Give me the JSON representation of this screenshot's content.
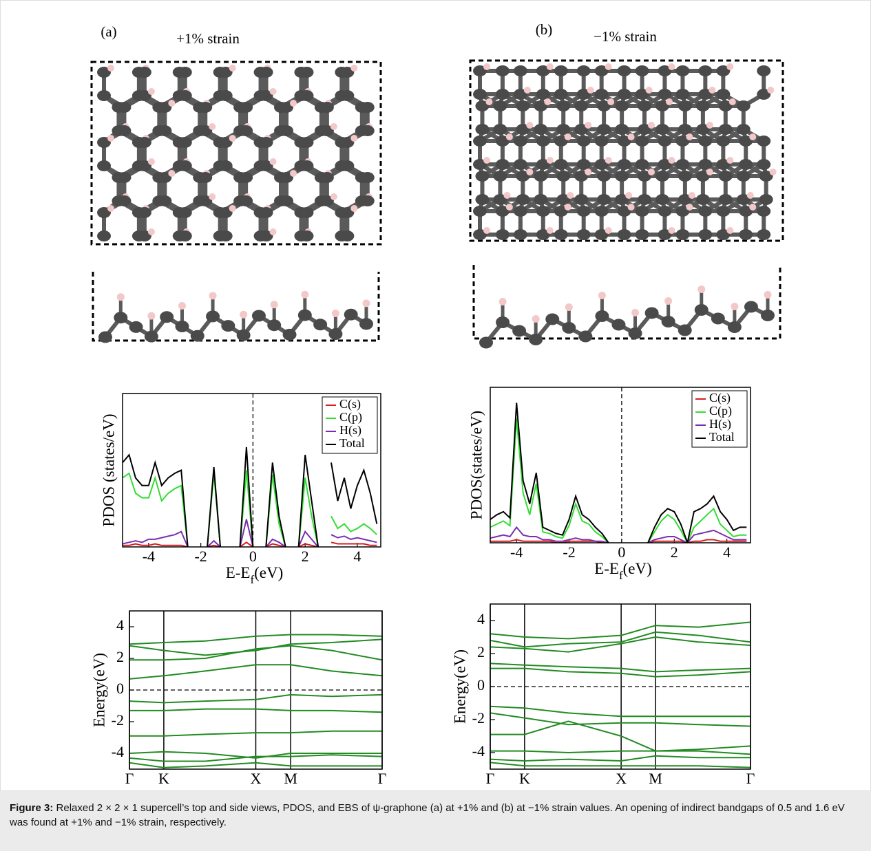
{
  "panels": [
    {
      "label": "(a)",
      "title": "+1% strain"
    },
    {
      "label": "(b)",
      "title": "−1% strain"
    }
  ],
  "caption": {
    "label": "Figure 3:",
    "text": "Relaxed 2 × 2 × 1 supercell’s top and side views, PDOS, and EBS of ψ-graphone (a) at +1% and (b) at −1% strain values. An opening of indirect bandgaps of 0.5 and 1.6 eV was found at +1% and −1% strain, respectively."
  },
  "chart_data": [
    {
      "type": "line",
      "ylabel": "PDOS (states/eV)",
      "xlabel": [
        "E-E",
        "f",
        "(eV)"
      ],
      "xlim": [
        -5,
        4.9
      ],
      "ylim": [
        0,
        100
      ],
      "xticks": [
        -4,
        -2,
        0,
        2,
        4
      ],
      "vline": 0,
      "legend": "upper right",
      "x": [
        -5,
        -4.75,
        -4.5,
        -4.25,
        -4,
        -3.75,
        -3.5,
        -3.25,
        -3,
        -2.75,
        -2.5,
        -2.25,
        -2,
        -1.75,
        -1.5,
        -1.25,
        -1,
        -0.75,
        -0.5,
        -0.25,
        0,
        0.25,
        0.5,
        0.75,
        1,
        1.25,
        1.5,
        1.75,
        2,
        2.25,
        2.5,
        2.75,
        3,
        3.25,
        3.5,
        3.75,
        4,
        4.25,
        4.5,
        4.75
      ],
      "series": [
        {
          "name": "C(s)",
          "color": "#d42020",
          "values": [
            1,
            1,
            2,
            1,
            1,
            2,
            1,
            1,
            1,
            1,
            0,
            null,
            null,
            0,
            1,
            0,
            null,
            null,
            0,
            3,
            0,
            null,
            0,
            2,
            1,
            0,
            null,
            0,
            2,
            1,
            0,
            null,
            3,
            2,
            2,
            2,
            2,
            2,
            1,
            1
          ]
        },
        {
          "name": "C(p)",
          "color": "#33dd33",
          "values": [
            45,
            48,
            35,
            32,
            32,
            45,
            30,
            35,
            38,
            40,
            0,
            null,
            null,
            0,
            48,
            0,
            null,
            null,
            0,
            50,
            0,
            null,
            0,
            47,
            15,
            0,
            null,
            0,
            45,
            20,
            0,
            null,
            20,
            12,
            15,
            10,
            12,
            15,
            12,
            8
          ]
        },
        {
          "name": "H(s)",
          "color": "#7b2fae",
          "values": [
            2,
            3,
            4,
            3,
            5,
            5,
            6,
            7,
            8,
            10,
            0,
            null,
            null,
            0,
            4,
            0,
            null,
            null,
            0,
            18,
            0,
            null,
            0,
            5,
            3,
            0,
            null,
            0,
            10,
            5,
            0,
            null,
            8,
            6,
            7,
            5,
            6,
            5,
            4,
            3
          ]
        },
        {
          "name": "Total",
          "color": "#000000",
          "values": [
            55,
            60,
            45,
            40,
            40,
            55,
            40,
            45,
            48,
            50,
            0,
            null,
            null,
            0,
            52,
            0,
            null,
            null,
            0,
            65,
            0,
            null,
            0,
            55,
            20,
            0,
            null,
            0,
            60,
            30,
            0,
            null,
            55,
            30,
            45,
            25,
            40,
            50,
            35,
            15
          ]
        }
      ]
    },
    {
      "type": "line",
      "ylabel": "Energy(eV)",
      "xlim": [
        0,
        1
      ],
      "ylim": [
        -5,
        5
      ],
      "yticks": [
        -4,
        -2,
        0,
        2,
        4
      ],
      "hline": 0,
      "grid": true,
      "xticks": [
        {
          "value": 0,
          "label": "Γ"
        },
        {
          "value": 0.136,
          "label": "K"
        },
        {
          "value": 0.5,
          "label": "X"
        },
        {
          "value": 0.638,
          "label": "M"
        },
        {
          "value": 1,
          "label": "Γ"
        }
      ],
      "x": [
        0,
        0.136,
        0.3,
        0.5,
        0.638,
        0.8,
        1
      ],
      "series": [
        {
          "color": "#228b22",
          "values": [
            2.9,
            3.0,
            3.1,
            3.4,
            3.5,
            3.5,
            3.4
          ]
        },
        {
          "color": "#228b22",
          "values": [
            2.8,
            2.5,
            2.2,
            2.5,
            2.9,
            3.0,
            3.2
          ]
        },
        {
          "color": "#228b22",
          "values": [
            1.9,
            1.9,
            2.0,
            2.6,
            2.8,
            2.5,
            1.9
          ]
        },
        {
          "color": "#228b22",
          "values": [
            0.7,
            0.9,
            1.2,
            1.6,
            1.6,
            1.2,
            0.9
          ]
        },
        {
          "color": "#228b22",
          "values": [
            -0.7,
            -0.8,
            -0.7,
            -0.6,
            -0.3,
            -0.4,
            -0.3
          ]
        },
        {
          "color": "#228b22",
          "values": [
            -1.3,
            -1.3,
            -1.2,
            -1.2,
            -1.3,
            -1.3,
            -1.4
          ]
        },
        {
          "color": "#228b22",
          "values": [
            -2.9,
            -2.9,
            -2.8,
            -2.7,
            -2.7,
            -2.6,
            -2.6
          ]
        },
        {
          "color": "#228b22",
          "values": [
            -4.0,
            -3.9,
            -4.0,
            -4.3,
            -4.0,
            -4.0,
            -4.0
          ]
        },
        {
          "color": "#228b22",
          "values": [
            -4.3,
            -4.5,
            -4.5,
            -4.2,
            -4.2,
            -4.1,
            -4.2
          ]
        },
        {
          "color": "#228b22",
          "values": [
            -4.6,
            -4.9,
            -4.8,
            -4.6,
            -4.8,
            -4.8,
            -4.8
          ]
        }
      ]
    },
    {
      "type": "line",
      "ylabel": "PDOS(states/eV)",
      "xlabel": [
        "E-E",
        "f",
        "(eV)"
      ],
      "xlim": [
        -5,
        4.9
      ],
      "ylim": [
        0,
        100
      ],
      "xticks": [
        -4,
        -2,
        0,
        2,
        4
      ],
      "vline": 0,
      "legend": "upper right",
      "x": [
        -5,
        -4.75,
        -4.5,
        -4.25,
        -4,
        -3.75,
        -3.5,
        -3.25,
        -3,
        -2.75,
        -2.5,
        -2.25,
        -2,
        -1.75,
        -1.5,
        -1.25,
        -1,
        -0.75,
        -0.5,
        -0.25,
        0,
        0.25,
        0.5,
        0.75,
        1,
        1.25,
        1.5,
        1.75,
        2,
        2.25,
        2.5,
        2.75,
        3,
        3.25,
        3.5,
        3.75,
        4,
        4.25,
        4.5,
        4.75
      ],
      "series": [
        {
          "name": "C(s)",
          "color": "#d42020",
          "values": [
            1,
            1,
            1,
            1,
            2,
            1,
            1,
            1,
            1,
            1,
            0,
            0,
            1,
            1,
            1,
            1,
            1,
            0,
            0,
            null,
            null,
            null,
            null,
            null,
            0,
            1,
            1,
            1,
            1,
            1,
            0,
            1,
            1,
            2,
            2,
            1,
            1,
            1,
            1,
            1
          ]
        },
        {
          "name": "C(p)",
          "color": "#33dd33",
          "values": [
            10,
            12,
            14,
            11,
            80,
            32,
            18,
            38,
            7,
            6,
            4,
            3,
            11,
            25,
            14,
            12,
            7,
            4,
            0,
            null,
            null,
            null,
            null,
            null,
            0,
            7,
            14,
            18,
            15,
            8,
            0,
            10,
            14,
            18,
            22,
            12,
            8,
            4,
            5,
            5
          ]
        },
        {
          "name": "H(s)",
          "color": "#7b2fae",
          "values": [
            3,
            4,
            5,
            4,
            10,
            5,
            4,
            4,
            2,
            2,
            1,
            1,
            2,
            3,
            2,
            2,
            1,
            1,
            0,
            null,
            null,
            null,
            null,
            null,
            0,
            2,
            3,
            4,
            4,
            2,
            0,
            5,
            6,
            7,
            8,
            6,
            4,
            2,
            2,
            2
          ]
        },
        {
          "name": "Total",
          "color": "#000000",
          "values": [
            15,
            18,
            20,
            16,
            90,
            40,
            25,
            45,
            10,
            8,
            6,
            5,
            15,
            30,
            18,
            15,
            10,
            6,
            0,
            null,
            null,
            null,
            null,
            null,
            0,
            10,
            18,
            22,
            20,
            12,
            0,
            20,
            22,
            25,
            30,
            20,
            15,
            8,
            10,
            10
          ]
        }
      ]
    },
    {
      "type": "line",
      "ylabel": "Energy(eV)",
      "xlim": [
        0,
        1
      ],
      "ylim": [
        -5,
        5
      ],
      "yticks": [
        -4,
        -2,
        0,
        2,
        4
      ],
      "hline": 0,
      "grid": true,
      "xticks": [
        {
          "value": 0,
          "label": "Γ"
        },
        {
          "value": 0.132,
          "label": "K"
        },
        {
          "value": 0.503,
          "label": "X"
        },
        {
          "value": 0.635,
          "label": "M"
        },
        {
          "value": 1,
          "label": "Γ"
        }
      ],
      "x": [
        0,
        0.132,
        0.3,
        0.503,
        0.635,
        0.8,
        1
      ],
      "series": [
        {
          "color": "#228b22",
          "values": [
            3.2,
            3.0,
            2.9,
            3.1,
            3.7,
            3.6,
            3.9
          ]
        },
        {
          "color": "#228b22",
          "values": [
            2.8,
            2.4,
            2.6,
            2.7,
            3.3,
            3.1,
            2.7
          ]
        },
        {
          "color": "#228b22",
          "values": [
            2.4,
            2.3,
            2.1,
            2.6,
            3.0,
            2.7,
            2.5
          ]
        },
        {
          "color": "#228b22",
          "values": [
            1.4,
            1.3,
            1.2,
            1.1,
            0.9,
            1.0,
            1.1
          ]
        },
        {
          "color": "#228b22",
          "values": [
            1.1,
            1.1,
            0.9,
            0.8,
            0.6,
            0.7,
            0.9
          ]
        },
        {
          "color": "#228b22",
          "values": [
            -1.2,
            -1.3,
            -1.6,
            -1.8,
            -1.8,
            -1.8,
            -1.8
          ]
        },
        {
          "color": "#228b22",
          "values": [
            -1.6,
            -1.9,
            -2.3,
            -2.2,
            -2.2,
            -2.3,
            -2.4
          ]
        },
        {
          "color": "#228b22",
          "values": [
            -2.9,
            -2.9,
            -2.1,
            -3.0,
            -3.9,
            -3.8,
            -3.6
          ]
        },
        {
          "color": "#228b22",
          "values": [
            -3.9,
            -3.9,
            -4.0,
            -3.9,
            -3.9,
            -3.9,
            -4.1
          ]
        },
        {
          "color": "#228b22",
          "values": [
            -4.4,
            -4.5,
            -4.4,
            -4.5,
            -4.2,
            -4.3,
            -4.3
          ]
        },
        {
          "color": "#228b22",
          "values": [
            -4.6,
            -4.8,
            -4.8,
            -4.8,
            -4.8,
            -4.8,
            -4.9
          ]
        }
      ]
    }
  ]
}
